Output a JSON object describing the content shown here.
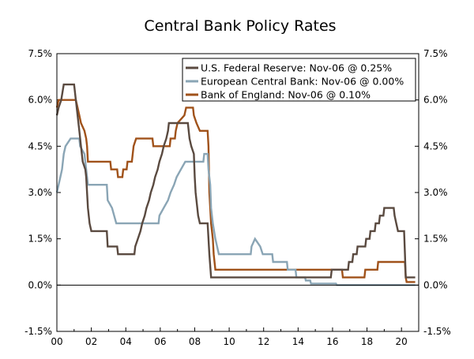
{
  "chart_data": {
    "type": "line",
    "title": "Central Bank Policy Rates",
    "xlabel": "",
    "ylabel": "",
    "xlim": [
      2000,
      2021
    ],
    "ylim": [
      -1.5,
      7.5
    ],
    "x_tick_values": [
      2000,
      2002,
      2004,
      2006,
      2008,
      2010,
      2012,
      2014,
      2016,
      2018,
      2020
    ],
    "x_tick_labels": [
      "00",
      "02",
      "04",
      "06",
      "08",
      "10",
      "12",
      "14",
      "16",
      "18",
      "20"
    ],
    "y_tick_values": [
      -1.5,
      0,
      1.5,
      3,
      4.5,
      6,
      7.5
    ],
    "y_tick_labels": [
      "-1.5%",
      "0.0%",
      "1.5%",
      "3.0%",
      "4.5%",
      "6.0%",
      "7.5%"
    ],
    "y_axis_sides": "both",
    "grid": false,
    "legend_position": "top-right",
    "series": [
      {
        "name": "U.S. Federal Reserve: Nov-06 @ 0.25%",
        "color": "#5a4a40",
        "points": [
          [
            2000.0,
            5.5
          ],
          [
            2000.1,
            5.75
          ],
          [
            2000.25,
            6.0
          ],
          [
            2000.4,
            6.5
          ],
          [
            2001.0,
            6.5
          ],
          [
            2001.1,
            6.0
          ],
          [
            2001.2,
            5.5
          ],
          [
            2001.3,
            5.0
          ],
          [
            2001.4,
            4.5
          ],
          [
            2001.5,
            4.0
          ],
          [
            2001.65,
            3.75
          ],
          [
            2001.7,
            3.5
          ],
          [
            2001.75,
            3.0
          ],
          [
            2001.8,
            2.5
          ],
          [
            2001.9,
            2.0
          ],
          [
            2002.0,
            1.75
          ],
          [
            2002.9,
            1.75
          ],
          [
            2002.95,
            1.25
          ],
          [
            2003.5,
            1.25
          ],
          [
            2003.55,
            1.0
          ],
          [
            2004.5,
            1.0
          ],
          [
            2004.55,
            1.25
          ],
          [
            2004.7,
            1.5
          ],
          [
            2004.85,
            1.75
          ],
          [
            2004.95,
            2.0
          ],
          [
            2005.1,
            2.25
          ],
          [
            2005.2,
            2.5
          ],
          [
            2005.35,
            2.75
          ],
          [
            2005.45,
            3.0
          ],
          [
            2005.6,
            3.25
          ],
          [
            2005.7,
            3.5
          ],
          [
            2005.85,
            3.75
          ],
          [
            2005.95,
            4.0
          ],
          [
            2006.1,
            4.25
          ],
          [
            2006.2,
            4.5
          ],
          [
            2006.35,
            4.75
          ],
          [
            2006.45,
            5.0
          ],
          [
            2006.5,
            5.25
          ],
          [
            2007.6,
            5.25
          ],
          [
            2007.7,
            4.75
          ],
          [
            2007.8,
            4.5
          ],
          [
            2007.95,
            4.25
          ],
          [
            2008.0,
            3.5
          ],
          [
            2008.05,
            3.0
          ],
          [
            2008.2,
            2.25
          ],
          [
            2008.3,
            2.0
          ],
          [
            2008.75,
            2.0
          ],
          [
            2008.8,
            1.5
          ],
          [
            2008.85,
            1.0
          ],
          [
            2008.95,
            0.25
          ],
          [
            2015.9,
            0.25
          ],
          [
            2015.95,
            0.5
          ],
          [
            2016.9,
            0.5
          ],
          [
            2016.95,
            0.75
          ],
          [
            2017.15,
            0.75
          ],
          [
            2017.2,
            1.0
          ],
          [
            2017.4,
            1.0
          ],
          [
            2017.45,
            1.25
          ],
          [
            2017.9,
            1.25
          ],
          [
            2017.95,
            1.5
          ],
          [
            2018.15,
            1.5
          ],
          [
            2018.2,
            1.75
          ],
          [
            2018.45,
            1.75
          ],
          [
            2018.5,
            2.0
          ],
          [
            2018.7,
            2.0
          ],
          [
            2018.75,
            2.25
          ],
          [
            2018.95,
            2.25
          ],
          [
            2019.0,
            2.5
          ],
          [
            2019.55,
            2.5
          ],
          [
            2019.6,
            2.25
          ],
          [
            2019.7,
            2.0
          ],
          [
            2019.8,
            1.75
          ],
          [
            2020.15,
            1.75
          ],
          [
            2020.2,
            1.0
          ],
          [
            2020.25,
            0.25
          ],
          [
            2020.8,
            0.25
          ]
        ]
      },
      {
        "name": "European Central Bank: Nov-06 @ 0.00%",
        "color": "#8aa5b5",
        "points": [
          [
            2000.0,
            3.0
          ],
          [
            2000.1,
            3.25
          ],
          [
            2000.2,
            3.5
          ],
          [
            2000.3,
            3.75
          ],
          [
            2000.4,
            4.25
          ],
          [
            2000.5,
            4.5
          ],
          [
            2000.8,
            4.75
          ],
          [
            2001.3,
            4.75
          ],
          [
            2001.35,
            4.5
          ],
          [
            2001.6,
            4.25
          ],
          [
            2001.7,
            3.75
          ],
          [
            2001.8,
            3.25
          ],
          [
            2002.9,
            3.25
          ],
          [
            2002.95,
            2.75
          ],
          [
            2003.2,
            2.5
          ],
          [
            2003.45,
            2.0
          ],
          [
            2005.9,
            2.0
          ],
          [
            2005.95,
            2.25
          ],
          [
            2006.2,
            2.5
          ],
          [
            2006.45,
            2.75
          ],
          [
            2006.6,
            3.0
          ],
          [
            2006.8,
            3.25
          ],
          [
            2006.95,
            3.5
          ],
          [
            2007.2,
            3.75
          ],
          [
            2007.45,
            4.0
          ],
          [
            2008.5,
            4.0
          ],
          [
            2008.55,
            4.25
          ],
          [
            2008.75,
            4.25
          ],
          [
            2008.8,
            3.75
          ],
          [
            2008.9,
            3.25
          ],
          [
            2008.95,
            2.5
          ],
          [
            2009.05,
            2.0
          ],
          [
            2009.2,
            1.5
          ],
          [
            2009.3,
            1.25
          ],
          [
            2009.4,
            1.0
          ],
          [
            2011.25,
            1.0
          ],
          [
            2011.3,
            1.25
          ],
          [
            2011.5,
            1.5
          ],
          [
            2011.8,
            1.25
          ],
          [
            2011.95,
            1.0
          ],
          [
            2012.5,
            1.0
          ],
          [
            2012.55,
            0.75
          ],
          [
            2013.35,
            0.75
          ],
          [
            2013.4,
            0.5
          ],
          [
            2013.85,
            0.5
          ],
          [
            2013.9,
            0.25
          ],
          [
            2014.4,
            0.25
          ],
          [
            2014.45,
            0.15
          ],
          [
            2014.7,
            0.15
          ],
          [
            2014.75,
            0.05
          ],
          [
            2016.2,
            0.05
          ],
          [
            2016.25,
            0.0
          ],
          [
            2020.8,
            0.0
          ]
        ]
      },
      {
        "name": "Bank of England: Nov-06 @ 0.10%",
        "color": "#a0521a",
        "points": [
          [
            2000.0,
            5.75
          ],
          [
            2000.1,
            6.0
          ],
          [
            2001.1,
            6.0
          ],
          [
            2001.2,
            5.75
          ],
          [
            2001.3,
            5.5
          ],
          [
            2001.4,
            5.25
          ],
          [
            2001.6,
            5.0
          ],
          [
            2001.7,
            4.75
          ],
          [
            2001.75,
            4.5
          ],
          [
            2001.8,
            4.0
          ],
          [
            2003.1,
            4.0
          ],
          [
            2003.15,
            3.75
          ],
          [
            2003.5,
            3.75
          ],
          [
            2003.55,
            3.5
          ],
          [
            2003.8,
            3.5
          ],
          [
            2003.85,
            3.75
          ],
          [
            2004.05,
            3.75
          ],
          [
            2004.1,
            4.0
          ],
          [
            2004.35,
            4.0
          ],
          [
            2004.4,
            4.25
          ],
          [
            2004.45,
            4.5
          ],
          [
            2004.6,
            4.75
          ],
          [
            2005.55,
            4.75
          ],
          [
            2005.6,
            4.5
          ],
          [
            2006.55,
            4.5
          ],
          [
            2006.6,
            4.75
          ],
          [
            2006.85,
            4.75
          ],
          [
            2006.9,
            5.0
          ],
          [
            2007.0,
            5.25
          ],
          [
            2007.4,
            5.5
          ],
          [
            2007.5,
            5.75
          ],
          [
            2007.9,
            5.75
          ],
          [
            2007.95,
            5.5
          ],
          [
            2008.1,
            5.25
          ],
          [
            2008.3,
            5.0
          ],
          [
            2008.75,
            5.0
          ],
          [
            2008.8,
            4.5
          ],
          [
            2008.85,
            3.0
          ],
          [
            2008.95,
            2.0
          ],
          [
            2009.05,
            1.5
          ],
          [
            2009.1,
            1.0
          ],
          [
            2009.2,
            0.5
          ],
          [
            2016.55,
            0.5
          ],
          [
            2016.6,
            0.25
          ],
          [
            2017.85,
            0.25
          ],
          [
            2017.9,
            0.5
          ],
          [
            2018.6,
            0.5
          ],
          [
            2018.65,
            0.75
          ],
          [
            2020.2,
            0.75
          ],
          [
            2020.25,
            0.25
          ],
          [
            2020.3,
            0.1
          ],
          [
            2020.8,
            0.1
          ]
        ]
      }
    ]
  }
}
